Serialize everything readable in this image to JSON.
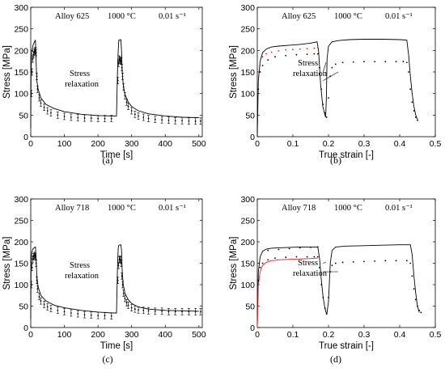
{
  "figure": {
    "panels": [
      "(a)",
      "(b)",
      "(c)",
      "(d)"
    ]
  },
  "chart_data": [
    {
      "id": "a",
      "type": "line",
      "panel_label": "(a)",
      "annotations": {
        "alloy": "Alloy 625",
        "temperature": "1000 °C",
        "strain_rate": "0.01 s⁻¹",
        "note": "Stress\nrelaxation"
      },
      "xlabel": "Time [s]",
      "ylabel": "Stress [MPa]",
      "xlim": [
        0,
        510
      ],
      "ylim": [
        0,
        300
      ],
      "xticks": [
        0,
        100,
        200,
        300,
        400,
        500
      ],
      "yticks": [
        0,
        50,
        100,
        150,
        200,
        250,
        300
      ],
      "series": [
        {
          "style": "solid",
          "x": [
            0,
            1,
            3,
            6,
            10,
            14,
            16,
            18,
            22,
            30,
            45,
            70,
            100,
            150,
            200,
            240,
            255,
            258,
            260,
            262,
            268,
            270,
            272,
            275,
            280,
            290,
            300,
            320,
            350,
            400,
            450,
            500
          ],
          "y": [
            20,
            150,
            195,
            210,
            218,
            224,
            170,
            130,
            110,
            90,
            75,
            65,
            58,
            52,
            49,
            48,
            48,
            150,
            200,
            224,
            225,
            200,
            150,
            120,
            98,
            80,
            70,
            60,
            53,
            48,
            45,
            44
          ]
        },
        {
          "style": "errorbar",
          "x": [
            2,
            4,
            6,
            8,
            10,
            12,
            14,
            16,
            18,
            20,
            25,
            30,
            40,
            50,
            60,
            80,
            100,
            120,
            140,
            160,
            180,
            200,
            220,
            240,
            259,
            261,
            263,
            265,
            267,
            269,
            271,
            273,
            276,
            280,
            285,
            290,
            300,
            310,
            320,
            335,
            350,
            370,
            390,
            410,
            430,
            450,
            470,
            490,
            505
          ],
          "y": [
            100,
            150,
            180,
            190,
            195,
            198,
            200,
            195,
            140,
            110,
            90,
            78,
            68,
            60,
            55,
            50,
            47,
            45,
            44,
            43,
            43,
            42,
            42,
            42,
            130,
            170,
            180,
            178,
            176,
            175,
            160,
            140,
            115,
            95,
            80,
            70,
            60,
            52,
            48,
            45,
            42,
            40,
            39,
            38,
            37,
            37,
            36,
            36,
            36
          ]
        }
      ]
    },
    {
      "id": "b",
      "type": "line",
      "panel_label": "(b)",
      "annotations": {
        "alloy": "Alloy 625",
        "temperature": "1000 °C",
        "strain_rate": "0.01 s⁻¹",
        "note": "Stress\nrelaxation"
      },
      "xlabel": "True strain [-]",
      "ylabel": "Stress [MPa]",
      "xlim": [
        0,
        0.5
      ],
      "ylim": [
        0,
        300
      ],
      "xticks": [
        0,
        0.1,
        0.2,
        0.3,
        0.4,
        0.5
      ],
      "yticks": [
        0,
        50,
        100,
        150,
        200,
        250,
        300
      ],
      "series": [
        {
          "style": "solid",
          "color": "#000000",
          "x": [
            0,
            0.003,
            0.008,
            0.015,
            0.025,
            0.04,
            0.06,
            0.09,
            0.12,
            0.15,
            0.168,
            0.172,
            0.178,
            0.184,
            0.19,
            0.192,
            0.194,
            0.196,
            0.2,
            0.21,
            0.23,
            0.26,
            0.3,
            0.35,
            0.4,
            0.42,
            0.425,
            0.43,
            0.435,
            0.44,
            0.445,
            0.45
          ],
          "y": [
            0,
            130,
            175,
            195,
            203,
            208,
            210,
            212,
            214,
            217,
            220,
            200,
            120,
            70,
            50,
            45,
            90,
            180,
            210,
            220,
            223,
            225,
            226,
            226,
            225,
            224,
            190,
            140,
            100,
            70,
            50,
            40
          ]
        },
        {
          "style": "dotted",
          "color": "#e02020",
          "x": [
            0.003,
            0.008,
            0.015,
            0.025,
            0.04,
            0.06,
            0.08,
            0.1,
            0.12,
            0.14,
            0.16,
            0.17
          ],
          "y": [
            120,
            165,
            185,
            192,
            196,
            199,
            201,
            202,
            203,
            204,
            205,
            206
          ]
        },
        {
          "style": "dotted",
          "color": "#000000",
          "x": [
            0.003,
            0.008,
            0.015,
            0.03,
            0.05,
            0.08,
            0.11,
            0.14,
            0.16,
            0.17,
            0.175,
            0.18,
            0.185,
            0.19,
            0.195,
            0.2,
            0.205,
            0.21,
            0.22,
            0.24,
            0.27,
            0.3,
            0.33,
            0.36,
            0.39,
            0.41,
            0.42,
            0.425,
            0.43,
            0.435,
            0.44,
            0.445,
            0.45
          ],
          "y": [
            110,
            150,
            165,
            178,
            185,
            188,
            190,
            191,
            192,
            192,
            160,
            110,
            75,
            55,
            45,
            90,
            140,
            160,
            168,
            172,
            173,
            174,
            174,
            174,
            174,
            174,
            172,
            150,
            110,
            80,
            60,
            45,
            38
          ]
        }
      ]
    },
    {
      "id": "c",
      "type": "line",
      "panel_label": "(c)",
      "annotations": {
        "alloy": "Alloy 718",
        "temperature": "1000 °C",
        "strain_rate": "0.01 s⁻¹",
        "note": "Stress\nrelaxation"
      },
      "xlabel": "Time [s]",
      "ylabel": "Stress [MPa]",
      "xlim": [
        0,
        510
      ],
      "ylim": [
        0,
        300
      ],
      "xticks": [
        0,
        100,
        200,
        300,
        400,
        500
      ],
      "yticks": [
        0,
        50,
        100,
        150,
        200,
        250,
        300
      ],
      "series": [
        {
          "style": "solid",
          "x": [
            0,
            1,
            3,
            6,
            10,
            14,
            16,
            18,
            22,
            30,
            45,
            70,
            100,
            150,
            200,
            240,
            255,
            258,
            260,
            262,
            268,
            270,
            272,
            275,
            280,
            290,
            300,
            320,
            350,
            400,
            450,
            500
          ],
          "y": [
            20,
            140,
            175,
            183,
            186,
            188,
            160,
            120,
            95,
            75,
            62,
            52,
            46,
            40,
            36,
            34,
            34,
            140,
            185,
            192,
            193,
            180,
            130,
            100,
            80,
            65,
            56,
            48,
            43,
            40,
            39,
            38
          ]
        },
        {
          "style": "errorbar",
          "x": [
            2,
            4,
            6,
            8,
            10,
            12,
            14,
            16,
            18,
            20,
            25,
            30,
            40,
            50,
            60,
            80,
            100,
            120,
            140,
            160,
            180,
            200,
            220,
            240,
            259,
            261,
            263,
            265,
            267,
            269,
            271,
            273,
            276,
            280,
            285,
            290,
            300,
            310,
            320,
            335,
            350,
            370,
            390,
            410,
            430,
            450,
            470,
            490,
            505
          ],
          "y": [
            100,
            140,
            160,
            165,
            168,
            168,
            165,
            150,
            110,
            90,
            72,
            62,
            54,
            48,
            44,
            40,
            37,
            34,
            32,
            30,
            29,
            28,
            28,
            27,
            110,
            145,
            158,
            160,
            158,
            150,
            120,
            100,
            80,
            68,
            58,
            52,
            46,
            43,
            41,
            40,
            39,
            38,
            38,
            37,
            37,
            37,
            37,
            37,
            37
          ]
        }
      ]
    },
    {
      "id": "d",
      "type": "line",
      "panel_label": "(d)",
      "annotations": {
        "alloy": "Alloy 718",
        "temperature": "1000 °C",
        "strain_rate": "0.01 s⁻¹",
        "note": "Stress\nrelaxation"
      },
      "xlabel": "True strain [-]",
      "ylabel": "Stress [MPa]",
      "xlim": [
        0,
        0.5
      ],
      "ylim": [
        0,
        300
      ],
      "xticks": [
        0,
        0.1,
        0.2,
        0.3,
        0.4,
        0.5
      ],
      "yticks": [
        0,
        50,
        100,
        150,
        200,
        250,
        300
      ],
      "series": [
        {
          "style": "solid",
          "color": "#000000",
          "x": [
            0,
            0.003,
            0.008,
            0.015,
            0.025,
            0.04,
            0.06,
            0.09,
            0.12,
            0.15,
            0.17,
            0.175,
            0.18,
            0.185,
            0.19,
            0.195,
            0.2,
            0.205,
            0.21,
            0.22,
            0.25,
            0.3,
            0.35,
            0.4,
            0.43,
            0.435,
            0.44,
            0.445,
            0.45,
            0.455
          ],
          "y": [
            0,
            130,
            165,
            178,
            183,
            185,
            186,
            187,
            188,
            188,
            188,
            160,
            110,
            70,
            45,
            30,
            60,
            150,
            180,
            188,
            190,
            191,
            192,
            193,
            193,
            170,
            120,
            80,
            50,
            35
          ]
        },
        {
          "style": "solid",
          "color": "#e02020",
          "x": [
            0,
            0.003,
            0.008,
            0.015,
            0.025,
            0.04,
            0.06,
            0.09,
            0.12,
            0.15,
            0.17
          ],
          "y": [
            0,
            100,
            130,
            145,
            152,
            156,
            158,
            159,
            160,
            161,
            162
          ]
        },
        {
          "style": "dotted",
          "color": "#000000",
          "x": [
            0.003,
            0.008,
            0.015,
            0.03,
            0.05,
            0.08,
            0.11,
            0.14,
            0.16,
            0.17,
            0.175,
            0.18,
            0.185,
            0.19,
            0.195,
            0.2,
            0.205,
            0.21,
            0.22,
            0.24,
            0.27,
            0.3,
            0.33,
            0.36,
            0.39,
            0.42,
            0.43,
            0.435,
            0.44,
            0.445,
            0.45,
            0.455,
            0.46
          ],
          "y": [
            110,
            140,
            150,
            158,
            162,
            164,
            165,
            165,
            165,
            165,
            140,
            100,
            70,
            45,
            32,
            70,
            130,
            145,
            150,
            152,
            153,
            154,
            155,
            156,
            156,
            156,
            150,
            120,
            90,
            65,
            50,
            40,
            35
          ]
        },
        {
          "style": "dotted",
          "color": "#000000",
          "x": [
            0.03,
            0.06,
            0.09,
            0.12,
            0.15,
            0.17
          ],
          "y": [
            180,
            182,
            184,
            186,
            187,
            188
          ]
        }
      ]
    }
  ]
}
